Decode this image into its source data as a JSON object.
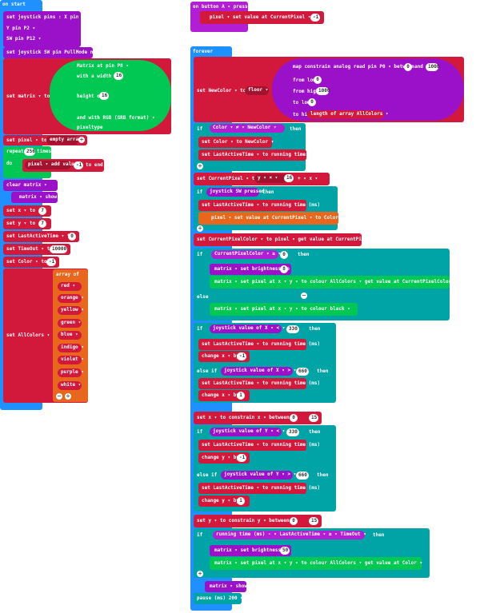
{
  "on_start": {
    "hat": "on start",
    "pins": "set joystick pins : X pin  P1 ▾",
    "ypin": "Y pin  P2 ▾",
    "swpin": "SW pin  P12 ▾",
    "pullmode": "set joystick SW pin PullMode  none ▾",
    "matrix_set": "set  matrix ▾  to",
    "matrix_pin": "Matrix at pin  P8 ▾",
    "matrix_width_label": "with a width of",
    "matrix_width": "16",
    "matrix_height_label": "height of",
    "matrix_height": "16",
    "matrix_mode": "and with  RGB (GRB format) ▾",
    "matrix_type": "pixeltype",
    "pixel_set": "set  pixel ▾  to",
    "empty_array": "empty array",
    "repeat": "repeat",
    "repeat_count": "256",
    "repeat_times": "times",
    "do": "do",
    "add_value": "pixel ▾  add value",
    "add_val": "-1",
    "to_end": "to end",
    "clear": "clear  matrix ▾",
    "show": "matrix ▾  show",
    "set_x": "set  x ▾  to",
    "x_val": "7",
    "set_y": "set  y ▾  to",
    "y_val": "7",
    "set_last": "set  LastActiveTime ▾  to",
    "last_val": "0",
    "set_timeout": "set  TimeOut ▾  to",
    "timeout_val": "10000",
    "set_color": "set  Color ▾  to",
    "color_val": "-1",
    "set_allcolors": "set  AllColors ▾  to",
    "array_of": "array of",
    "colors": [
      "red ▾",
      "orange ▾",
      "yellow ▾",
      "green ▾",
      "blue ▾",
      "indigo ▾",
      "violet ▾",
      "purple ▾",
      "white ▾"
    ]
  },
  "on_button": {
    "hat": "on button  A ▾  pressed",
    "set_value": "pixel ▾  set value at  CurrentPixel ▾  to",
    "val": "-1"
  },
  "forever": {
    "hat": "forever",
    "set_newcolor": "set  NewColor ▾  to",
    "floor": "floor ▾",
    "map": "map  constrain  analog read pin  P0 ▾  between",
    "map_lo": "0",
    "map_and": "and",
    "map_hi": "1000",
    "from_low": "from low",
    "from_low_val": "0",
    "from_high": "from high",
    "from_high_val": "1000",
    "to_low": "to low",
    "to_low_val": "0",
    "to_high": "to high",
    "length_of": "length of array  AllColors ▾",
    "if1": "if",
    "cond1": "Color ▾  ≠ ▾  NewColor ▾",
    "then": "then",
    "set_color_new": "set  Color ▾  to  NewColor ▾",
    "set_last_run": "set  LastActiveTime ▾  to  running time (ms)",
    "set_current": "set  CurrentPixel ▾  to",
    "y_times": "y ▾  × ▾",
    "mult": "16",
    "plus_x": "+ ▾  x ▾",
    "if2": "if",
    "joy_pressed": "joystick SW pressed",
    "pixel_setval_color": "pixel ▾  set value at  CurrentPixel ▾  to  Color ▾",
    "set_current_color": "set  CurrentPixelColor ▾  to  pixel ▾  get value at  CurrentPixel ▾",
    "if3": "if",
    "cpc_cond": "CurrentPixelColor ▾  ≥ ▾",
    "cpc_zero": "0",
    "brightness": "matrix ▾  set brightness to",
    "brightness_val": "8",
    "setpixel_color": "matrix ▾  set pixel at  x ▾  y ▾  to colour  AllColors ▾  get value at  CurrentPixelColor ▾",
    "else": "else",
    "setpixel_black": "matrix ▾  set pixel at  x ▾  y ▾  to colour  black ▾",
    "if_x_low": "joystick value of  X ▾  < ▾",
    "x_low_val": "330",
    "change_x_neg": "change  x ▾  by",
    "neg1": "-1",
    "elseif": "else if",
    "if_x_high": "joystick value of  X ▾  > ▾",
    "x_high_val": "660",
    "change_x_pos": "change  x ▾  by",
    "pos1": "1",
    "constrain_x": "set  x ▾  to  constrain  x ▾  between",
    "c_lo": "0",
    "c_and": "and",
    "c_hi": "15",
    "if_y_low": "joystick value of  Y ▾  < ▾",
    "y_low_val": "330",
    "change_y_neg": "change  y ▾  by",
    "if_y_high": "joystick value of  Y ▾  > ▾",
    "y_high_val": "660",
    "change_y_pos": "change  y ▾  by",
    "constrain_y": "set  y ▾  to  constrain  y ▾  between",
    "timeout_cond": "running time (ms)  - ▾  LastActiveTime ▾  ≥ ▾  TimeOut ▾",
    "brightness2_val": "50",
    "setpixel_color2": "matrix ▾  set pixel at  x ▾  y ▾  to colour  AllColors ▾  get value at  Color ▾",
    "show": "matrix ▾  show",
    "pause": "pause (ms)  200 ▾"
  }
}
